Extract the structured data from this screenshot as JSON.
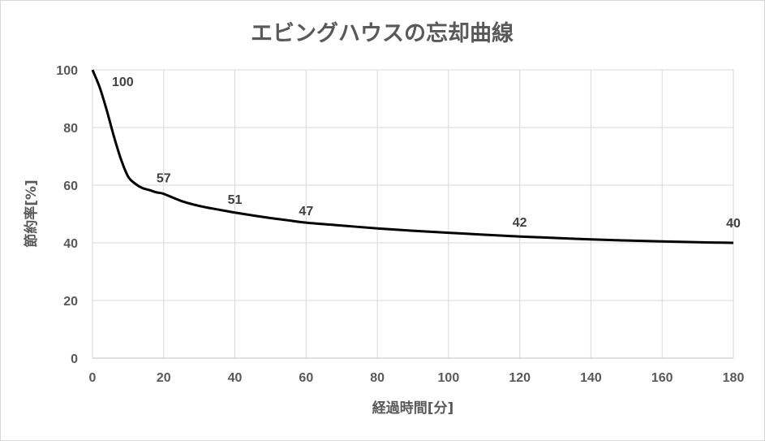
{
  "chart_data": {
    "type": "line",
    "title": "エビングハウスの忘却曲線",
    "xlabel": "経過時間[分]",
    "ylabel": "節約率[%]",
    "xlim": [
      0,
      180
    ],
    "ylim": [
      0,
      100
    ],
    "x_ticks": [
      "0",
      "20",
      "40",
      "60",
      "80",
      "100",
      "120",
      "140",
      "160",
      "180"
    ],
    "y_ticks": [
      "0",
      "20",
      "40",
      "60",
      "80",
      "100"
    ],
    "grid": true,
    "legend": "none",
    "line_color": "#000000",
    "series": [
      {
        "x": [
          0,
          2,
          4,
          6,
          8,
          10,
          12,
          14,
          16,
          18,
          20,
          25,
          30,
          35,
          40,
          45,
          50,
          55,
          60,
          70,
          80,
          90,
          100,
          110,
          120,
          130,
          140,
          150,
          160,
          170,
          180
        ],
        "values": [
          100,
          94,
          86,
          77,
          69,
          63,
          60.5,
          59,
          58.3,
          57.5,
          57,
          54.5,
          52.8,
          51.6,
          50.5,
          49.5,
          48.6,
          47.8,
          47,
          46,
          45,
          44.2,
          43.5,
          42.8,
          42.2,
          41.7,
          41.2,
          40.8,
          40.5,
          40.2,
          40
        ]
      }
    ],
    "data_labels": [
      {
        "x": 0,
        "y": 100,
        "text": "100"
      },
      {
        "x": 20,
        "y": 57,
        "text": "57"
      },
      {
        "x": 40,
        "y": 51,
        "text": "51"
      },
      {
        "x": 60,
        "y": 47,
        "text": "47"
      },
      {
        "x": 120,
        "y": 42,
        "text": "42"
      },
      {
        "x": 180,
        "y": 40,
        "text": "40"
      }
    ]
  }
}
